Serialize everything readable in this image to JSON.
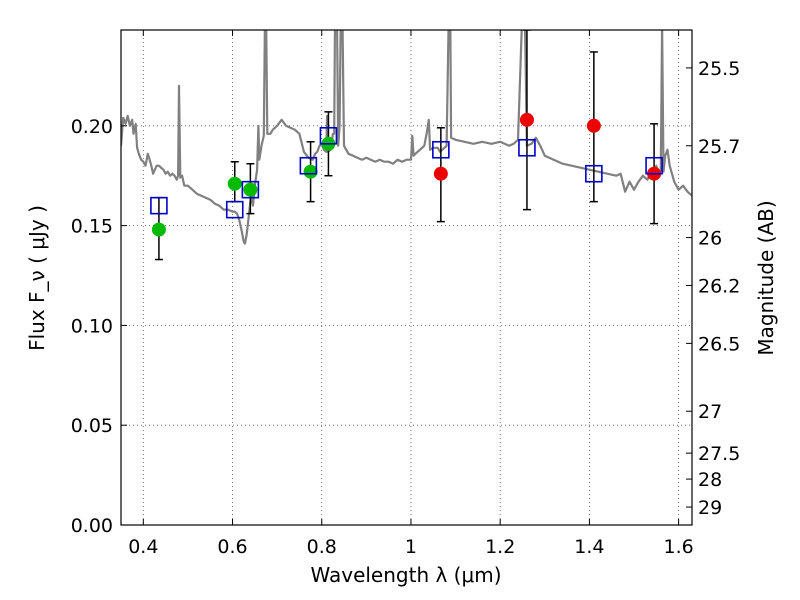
{
  "chart_data": {
    "type": "scatter",
    "title": "",
    "xlabel": "Wavelength  λ (μm)",
    "ylabel": "Flux  F_ν  ( μJy )",
    "ylabel_right": "Magnitude (AB)",
    "xlim": [
      0.35,
      1.63
    ],
    "ylim": [
      0.0,
      0.248
    ],
    "grid": true,
    "x_ticks": [
      0.4,
      0.6,
      0.8,
      1.0,
      1.2,
      1.4,
      1.6
    ],
    "x_tick_labels": [
      "0.4",
      "0.6",
      "0.8",
      "1",
      "1.2",
      "1.4",
      "1.6"
    ],
    "y_ticks": [
      0.0,
      0.05,
      0.1,
      0.15,
      0.2
    ],
    "y_tick_labels": [
      "0.00",
      "0.05",
      "0.10",
      "0.15",
      "0.20"
    ],
    "right_ticks": [
      {
        "label": "25.5",
        "flux": 0.229
      },
      {
        "label": "25.7",
        "flux": 0.19
      },
      {
        "label": "26",
        "flux": 0.144
      },
      {
        "label": "26.2",
        "flux": 0.12
      },
      {
        "label": "26.5",
        "flux": 0.091
      },
      {
        "label": "27",
        "flux": 0.057
      },
      {
        "label": "27.5",
        "flux": 0.036
      },
      {
        "label": "28",
        "flux": 0.023
      },
      {
        "label": "29",
        "flux": 0.009
      }
    ],
    "colors": {
      "model": "#808080",
      "green": "#00bb00",
      "red": "#ee0000",
      "model_photometry": "#0000cc",
      "errorbar": "#000000",
      "grid": "#555555"
    },
    "series": [
      {
        "kind": "model_spectrum",
        "points": [
          [
            0.35,
            0.19
          ],
          [
            0.355,
            0.204
          ],
          [
            0.36,
            0.201
          ],
          [
            0.365,
            0.205
          ],
          [
            0.37,
            0.2
          ],
          [
            0.375,
            0.203
          ],
          [
            0.378,
            0.196
          ],
          [
            0.383,
            0.201
          ],
          [
            0.386,
            0.189
          ],
          [
            0.39,
            0.186
          ],
          [
            0.395,
            0.183
          ],
          [
            0.4,
            0.182
          ],
          [
            0.405,
            0.18
          ],
          [
            0.41,
            0.186
          ],
          [
            0.413,
            0.184
          ],
          [
            0.418,
            0.18
          ],
          [
            0.422,
            0.176
          ],
          [
            0.43,
            0.18
          ],
          [
            0.435,
            0.18
          ],
          [
            0.44,
            0.179
          ],
          [
            0.445,
            0.178
          ],
          [
            0.45,
            0.176
          ],
          [
            0.455,
            0.177
          ],
          [
            0.46,
            0.175
          ],
          [
            0.465,
            0.176
          ],
          [
            0.47,
            0.175
          ],
          [
            0.475,
            0.173
          ],
          [
            0.478,
            0.175
          ],
          [
            0.48,
            0.22
          ],
          [
            0.483,
            0.174
          ],
          [
            0.487,
            0.175
          ],
          [
            0.492,
            0.17
          ],
          [
            0.5,
            0.17
          ],
          [
            0.51,
            0.168
          ],
          [
            0.52,
            0.166
          ],
          [
            0.53,
            0.165
          ],
          [
            0.54,
            0.164
          ],
          [
            0.55,
            0.163
          ],
          [
            0.56,
            0.161
          ],
          [
            0.57,
            0.16
          ],
          [
            0.58,
            0.158
          ],
          [
            0.59,
            0.158
          ],
          [
            0.6,
            0.157
          ],
          [
            0.605,
            0.157
          ],
          [
            0.61,
            0.156
          ],
          [
            0.615,
            0.153
          ],
          [
            0.62,
            0.148
          ],
          [
            0.625,
            0.142
          ],
          [
            0.628,
            0.141
          ],
          [
            0.632,
            0.146
          ],
          [
            0.638,
            0.158
          ],
          [
            0.642,
            0.166
          ],
          [
            0.646,
            0.16
          ],
          [
            0.65,
            0.17
          ],
          [
            0.655,
            0.178
          ],
          [
            0.658,
            0.2
          ],
          [
            0.66,
            0.183
          ],
          [
            0.665,
            0.19
          ],
          [
            0.67,
            0.195
          ],
          [
            0.673,
            0.26
          ],
          [
            0.675,
            0.26
          ],
          [
            0.678,
            0.196
          ],
          [
            0.685,
            0.196
          ],
          [
            0.69,
            0.198
          ],
          [
            0.7,
            0.2
          ],
          [
            0.71,
            0.203
          ],
          [
            0.72,
            0.2
          ],
          [
            0.73,
            0.199
          ],
          [
            0.74,
            0.198
          ],
          [
            0.75,
            0.196
          ],
          [
            0.76,
            0.187
          ],
          [
            0.77,
            0.184
          ],
          [
            0.78,
            0.183
          ],
          [
            0.785,
            0.186
          ],
          [
            0.79,
            0.187
          ],
          [
            0.795,
            0.19
          ],
          [
            0.8,
            0.191
          ],
          [
            0.805,
            0.188
          ],
          [
            0.81,
            0.187
          ],
          [
            0.812,
            0.205
          ],
          [
            0.814,
            0.187
          ],
          [
            0.82,
            0.188
          ],
          [
            0.825,
            0.196
          ],
          [
            0.828,
            0.196
          ],
          [
            0.83,
            0.26
          ],
          [
            0.834,
            0.26
          ],
          [
            0.837,
            0.19
          ],
          [
            0.84,
            0.2
          ],
          [
            0.843,
            0.26
          ],
          [
            0.846,
            0.26
          ],
          [
            0.85,
            0.19
          ],
          [
            0.86,
            0.186
          ],
          [
            0.87,
            0.185
          ],
          [
            0.88,
            0.184
          ],
          [
            0.89,
            0.183
          ],
          [
            0.9,
            0.184
          ],
          [
            0.91,
            0.183
          ],
          [
            0.92,
            0.182
          ],
          [
            0.93,
            0.183
          ],
          [
            0.94,
            0.182
          ],
          [
            0.95,
            0.182
          ],
          [
            0.96,
            0.181
          ],
          [
            0.97,
            0.183
          ],
          [
            0.98,
            0.182
          ],
          [
            0.99,
            0.183
          ],
          [
            1.0,
            0.183
          ],
          [
            1.003,
            0.195
          ],
          [
            1.006,
            0.185
          ],
          [
            1.01,
            0.186
          ],
          [
            1.02,
            0.188
          ],
          [
            1.03,
            0.19
          ],
          [
            1.035,
            0.196
          ],
          [
            1.04,
            0.203
          ],
          [
            1.043,
            0.188
          ],
          [
            1.05,
            0.189
          ],
          [
            1.06,
            0.189
          ],
          [
            1.065,
            0.187
          ],
          [
            1.07,
            0.188
          ],
          [
            1.08,
            0.19
          ],
          [
            1.085,
            0.26
          ],
          [
            1.088,
            0.26
          ],
          [
            1.09,
            0.194
          ],
          [
            1.1,
            0.193
          ],
          [
            1.12,
            0.192
          ],
          [
            1.14,
            0.191
          ],
          [
            1.16,
            0.192
          ],
          [
            1.18,
            0.191
          ],
          [
            1.2,
            0.192
          ],
          [
            1.22,
            0.19
          ],
          [
            1.23,
            0.191
          ],
          [
            1.24,
            0.193
          ],
          [
            1.25,
            0.26
          ],
          [
            1.255,
            0.26
          ],
          [
            1.26,
            0.19
          ],
          [
            1.27,
            0.191
          ],
          [
            1.28,
            0.194
          ],
          [
            1.29,
            0.19
          ],
          [
            1.3,
            0.185
          ],
          [
            1.32,
            0.183
          ],
          [
            1.34,
            0.181
          ],
          [
            1.36,
            0.18
          ],
          [
            1.38,
            0.179
          ],
          [
            1.4,
            0.178
          ],
          [
            1.42,
            0.177
          ],
          [
            1.44,
            0.176
          ],
          [
            1.46,
            0.175
          ],
          [
            1.47,
            0.176
          ],
          [
            1.48,
            0.167
          ],
          [
            1.49,
            0.172
          ],
          [
            1.5,
            0.168
          ],
          [
            1.51,
            0.172
          ],
          [
            1.52,
            0.175
          ],
          [
            1.53,
            0.173
          ],
          [
            1.54,
            0.178
          ],
          [
            1.545,
            0.176
          ],
          [
            1.55,
            0.18
          ],
          [
            1.555,
            0.175
          ],
          [
            1.56,
            0.178
          ],
          [
            1.563,
            0.25
          ],
          [
            1.566,
            0.177
          ],
          [
            1.57,
            0.185
          ],
          [
            1.575,
            0.188
          ],
          [
            1.58,
            0.18
          ],
          [
            1.59,
            0.172
          ],
          [
            1.6,
            0.168
          ],
          [
            1.61,
            0.17
          ],
          [
            1.62,
            0.167
          ],
          [
            1.63,
            0.165
          ]
        ]
      },
      {
        "kind": "model_photometry",
        "points": [
          [
            0.435,
            0.16
          ],
          [
            0.605,
            0.158
          ],
          [
            0.64,
            0.168
          ],
          [
            0.77,
            0.18
          ],
          [
            0.815,
            0.195
          ],
          [
            1.067,
            0.188
          ],
          [
            1.26,
            0.189
          ],
          [
            1.41,
            0.176
          ],
          [
            1.545,
            0.18
          ]
        ]
      },
      {
        "kind": "observed_optical",
        "points": [
          [
            0.435,
            0.148
          ],
          [
            0.605,
            0.171
          ],
          [
            0.64,
            0.168
          ],
          [
            0.775,
            0.177
          ],
          [
            0.815,
            0.191
          ]
        ]
      },
      {
        "kind": "observed_nir",
        "points": [
          [
            1.067,
            0.176
          ],
          [
            1.26,
            0.203
          ],
          [
            1.41,
            0.2
          ],
          [
            1.545,
            0.176
          ]
        ]
      },
      {
        "kind": "errorbars",
        "points": [
          {
            "x": 0.435,
            "lo": 0.133,
            "hi": 0.164
          },
          {
            "x": 0.605,
            "lo": 0.162,
            "hi": 0.182
          },
          {
            "x": 0.64,
            "lo": 0.156,
            "hi": 0.181
          },
          {
            "x": 0.775,
            "lo": 0.162,
            "hi": 0.192
          },
          {
            "x": 0.815,
            "lo": 0.175,
            "hi": 0.207
          },
          {
            "x": 1.067,
            "lo": 0.152,
            "hi": 0.199
          },
          {
            "x": 1.26,
            "lo": 0.158,
            "hi": 0.248
          },
          {
            "x": 1.41,
            "lo": 0.162,
            "hi": 0.237
          },
          {
            "x": 1.545,
            "lo": 0.151,
            "hi": 0.201
          }
        ]
      }
    ]
  }
}
